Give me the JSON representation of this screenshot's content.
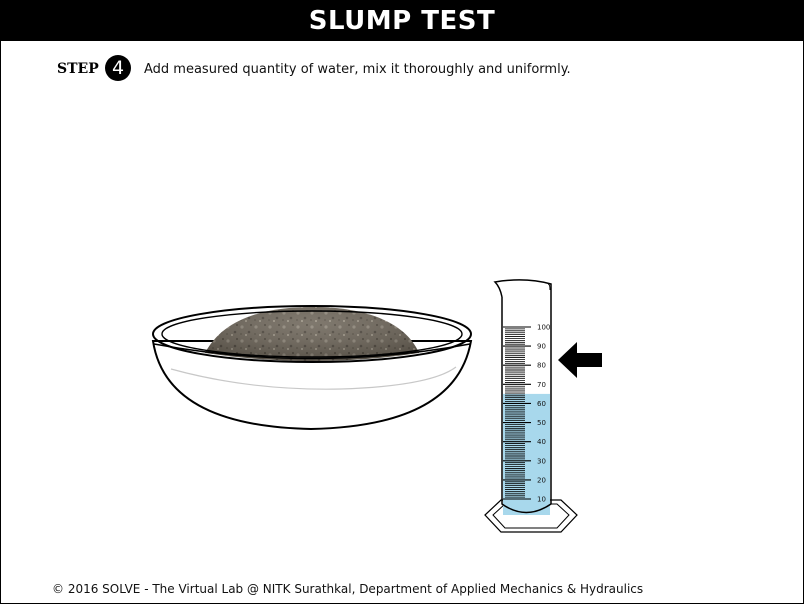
{
  "title": "SLUMP TEST",
  "step": {
    "label": "STEP",
    "number": "4",
    "instruction": "Add measured quantity of water, mix it thoroughly and uniformly."
  },
  "cylinder": {
    "scale_labels": [
      "100",
      "90",
      "80",
      "70",
      "60",
      "50",
      "40",
      "30",
      "20",
      "10"
    ],
    "water_level": 65,
    "water_color": "#a8d8ec",
    "indicator_icon": "left-arrow-icon"
  },
  "colors": {
    "titlebar": "#000000",
    "mix": "#6e665a"
  },
  "footer": "© 2016 SOLVE - The Virtual Lab @ NITK Surathkal, Department of Applied Mechanics & Hydraulics"
}
